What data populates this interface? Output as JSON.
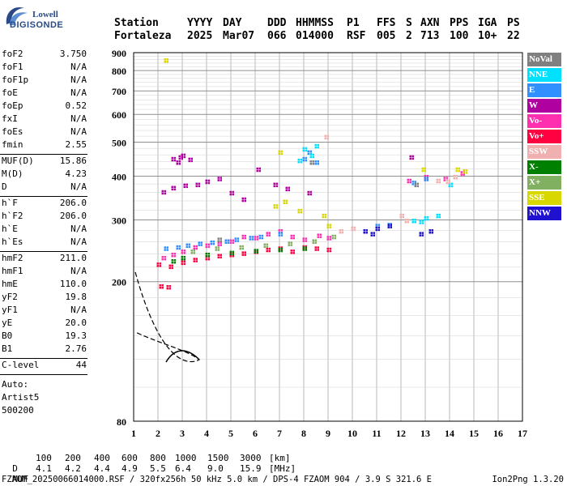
{
  "logo": {
    "line1": "Lowell",
    "line2": "DIGISONDE"
  },
  "header": {
    "columns": [
      {
        "label": "Station",
        "value": "Fortaleza"
      },
      {
        "label": "YYYY",
        "value": "2025"
      },
      {
        "label": "DAY",
        "value": "Mar07"
      },
      {
        "label": "DDD",
        "value": "066"
      },
      {
        "label": "HHMMSS",
        "value": "014000"
      },
      {
        "label": "P1",
        "value": "RSF"
      },
      {
        "label": "FFS",
        "value": "005"
      },
      {
        "label": "S",
        "value": "2"
      },
      {
        "label": "AXN",
        "value": "713"
      },
      {
        "label": "PPS",
        "value": "100"
      },
      {
        "label": "IGA",
        "value": "10+"
      },
      {
        "label": "PS",
        "value": "22"
      }
    ]
  },
  "params": {
    "group1": [
      {
        "key": "foF2",
        "value": "3.750"
      },
      {
        "key": "foF1",
        "value": "N/A"
      },
      {
        "key": "foF1p",
        "value": "N/A"
      },
      {
        "key": "foE",
        "value": "N/A"
      },
      {
        "key": "foEp",
        "value": "0.52"
      },
      {
        "key": "fxI",
        "value": "N/A"
      },
      {
        "key": "foEs",
        "value": "N/A"
      },
      {
        "key": "fmin",
        "value": "2.55"
      }
    ],
    "group2": [
      {
        "key": "MUF(D)",
        "value": "15.86"
      },
      {
        "key": "M(D)",
        "value": "4.23"
      },
      {
        "key": "D",
        "value": "N/A"
      }
    ],
    "group3": [
      {
        "key": "h`F",
        "value": "206.0"
      },
      {
        "key": "h`F2",
        "value": "206.0"
      },
      {
        "key": "h`E",
        "value": "N/A"
      },
      {
        "key": "h`Es",
        "value": "N/A"
      }
    ],
    "group4": [
      {
        "key": "hmF2",
        "value": "211.0"
      },
      {
        "key": "hmF1",
        "value": "N/A"
      },
      {
        "key": "hmE",
        "value": "110.0"
      },
      {
        "key": "yF2",
        "value": "19.8"
      },
      {
        "key": "yF1",
        "value": "N/A"
      },
      {
        "key": "yE",
        "value": "20.0"
      },
      {
        "key": "B0",
        "value": "19.3"
      },
      {
        "key": "B1",
        "value": "2.76"
      }
    ],
    "clevel": {
      "key": "C-level",
      "value": "44"
    },
    "auto": {
      "line1": "Auto:",
      "line2": "Artist5",
      "line3": "500200"
    }
  },
  "legend": [
    {
      "label": "NoVal",
      "color": "#808080"
    },
    {
      "label": "NNE",
      "color": "#00e0ff"
    },
    {
      "label": "E",
      "color": "#3090ff"
    },
    {
      "label": "W",
      "color": "#b000a0"
    },
    {
      "label": "Vo-",
      "color": "#ff30b0"
    },
    {
      "label": "Vo+",
      "color": "#ff0040"
    },
    {
      "label": "SSW",
      "color": "#f0b0b0"
    },
    {
      "label": "X-",
      "color": "#008000"
    },
    {
      "label": "X+",
      "color": "#80b060"
    },
    {
      "label": "SSE",
      "color": "#d8d800"
    },
    {
      "label": "NNW",
      "color": "#2010d0"
    }
  ],
  "chart_data": {
    "type": "scatter",
    "title": "",
    "xlabel": "",
    "ylabel": "",
    "xlim": [
      1,
      17
    ],
    "ylim": [
      80,
      900
    ],
    "y_scale": "log",
    "x_ticks": [
      "1",
      "2",
      "3",
      "4",
      "5",
      "6",
      "7",
      "8",
      "9",
      "10",
      "11",
      "12",
      "13",
      "14",
      "15",
      "16",
      "17"
    ],
    "y_ticks": [
      "80",
      "200",
      "300",
      "400",
      "500",
      "600",
      "700",
      "800",
      "900"
    ],
    "grid": true,
    "legend_position": "right",
    "series": [
      {
        "name": "W",
        "points": [
          [
            2.6,
            450
          ],
          [
            2.9,
            455
          ],
          [
            3.3,
            448
          ],
          [
            2.8,
            440
          ],
          [
            3.0,
            460
          ],
          [
            2.2,
            362
          ],
          [
            2.6,
            372
          ],
          [
            3.1,
            378
          ],
          [
            3.6,
            380
          ],
          [
            4.0,
            388
          ],
          [
            4.5,
            395
          ],
          [
            5.0,
            360
          ],
          [
            5.5,
            345
          ],
          [
            6.1,
            420
          ],
          [
            6.8,
            380
          ],
          [
            7.3,
            370
          ],
          [
            8.2,
            360
          ],
          [
            12.4,
            455
          ]
        ]
      },
      {
        "name": "Vo-",
        "points": [
          [
            2.2,
            235
          ],
          [
            2.6,
            240
          ],
          [
            3.0,
            245
          ],
          [
            3.5,
            252
          ],
          [
            4.0,
            255
          ],
          [
            4.5,
            258
          ],
          [
            5.0,
            262
          ],
          [
            5.5,
            270
          ],
          [
            6.0,
            268
          ],
          [
            6.5,
            275
          ],
          [
            7.0,
            280
          ],
          [
            7.5,
            270
          ],
          [
            8.0,
            265
          ],
          [
            8.6,
            272
          ],
          [
            9.0,
            268
          ],
          [
            12.3,
            390
          ],
          [
            13.0,
            400
          ],
          [
            13.8,
            395
          ],
          [
            14.5,
            410
          ]
        ]
      },
      {
        "name": "Vo+",
        "points": [
          [
            2.0,
            225
          ],
          [
            2.5,
            222
          ],
          [
            3.0,
            228
          ],
          [
            3.5,
            232
          ],
          [
            4.0,
            235
          ],
          [
            4.5,
            238
          ],
          [
            5.0,
            240
          ],
          [
            5.5,
            242
          ],
          [
            6.0,
            245
          ],
          [
            6.5,
            248
          ],
          [
            7.0,
            250
          ],
          [
            7.5,
            245
          ],
          [
            8.0,
            252
          ],
          [
            8.5,
            250
          ],
          [
            9.0,
            248
          ],
          [
            2.1,
            195
          ],
          [
            2.4,
            194
          ]
        ]
      },
      {
        "name": "E",
        "points": [
          [
            2.3,
            250
          ],
          [
            2.8,
            252
          ],
          [
            3.2,
            255
          ],
          [
            3.7,
            258
          ],
          [
            4.2,
            260
          ],
          [
            4.8,
            262
          ],
          [
            5.2,
            265
          ],
          [
            5.8,
            268
          ],
          [
            6.2,
            270
          ],
          [
            7.0,
            275
          ],
          [
            8.0,
            450
          ],
          [
            8.2,
            470
          ],
          [
            8.5,
            440
          ],
          [
            11.0,
            290
          ],
          [
            11.5,
            292
          ],
          [
            12.5,
            385
          ],
          [
            13.0,
            395
          ]
        ]
      },
      {
        "name": "NNE",
        "points": [
          [
            8.0,
            480
          ],
          [
            8.3,
            460
          ],
          [
            8.5,
            490
          ],
          [
            7.8,
            445
          ],
          [
            12.5,
            300
          ],
          [
            13.0,
            305
          ],
          [
            13.5,
            310
          ],
          [
            12.8,
            298
          ],
          [
            14.0,
            380
          ]
        ]
      },
      {
        "name": "NNW",
        "points": [
          [
            10.5,
            280
          ],
          [
            11.0,
            285
          ],
          [
            11.5,
            290
          ],
          [
            12.8,
            275
          ],
          [
            13.2,
            280
          ],
          [
            10.8,
            275
          ]
        ]
      },
      {
        "name": "SSW",
        "points": [
          [
            9.5,
            280
          ],
          [
            10.0,
            285
          ],
          [
            12.0,
            310
          ],
          [
            12.2,
            300
          ],
          [
            13.5,
            390
          ],
          [
            13.9,
            388
          ],
          [
            14.2,
            400
          ],
          [
            8.9,
            520
          ]
        ]
      },
      {
        "name": "X-",
        "points": [
          [
            3.0,
            235
          ],
          [
            4.0,
            240
          ],
          [
            5.0,
            243
          ],
          [
            6.0,
            246
          ],
          [
            7.0,
            248
          ],
          [
            8.0,
            250
          ],
          [
            2.6,
            230
          ]
        ]
      },
      {
        "name": "X+",
        "points": [
          [
            3.4,
            245
          ],
          [
            4.4,
            250
          ],
          [
            5.4,
            252
          ],
          [
            6.4,
            255
          ],
          [
            7.4,
            258
          ],
          [
            8.4,
            262
          ],
          [
            9.2,
            270
          ]
        ]
      },
      {
        "name": "SSE",
        "points": [
          [
            6.8,
            330
          ],
          [
            7.2,
            340
          ],
          [
            7.8,
            320
          ],
          [
            8.8,
            310
          ],
          [
            9.0,
            290
          ],
          [
            12.9,
            420
          ],
          [
            14.3,
            420
          ],
          [
            14.6,
            415
          ],
          [
            7.0,
            470
          ],
          [
            2.3,
            860
          ]
        ]
      },
      {
        "name": "NoVal",
        "points": [
          [
            4.5,
            265
          ],
          [
            8.3,
            440
          ],
          [
            12.6,
            380
          ]
        ]
      }
    ],
    "bottom_table": {
      "D_label": "D",
      "D_values": [
        "100",
        "200",
        "400",
        "600",
        "800",
        "1000",
        "1500",
        "3000"
      ],
      "D_unit": "[km]",
      "MUF_label": "MUF",
      "MUF_values": [
        "4.1",
        "4.2",
        "4.4",
        "4.9",
        "5.5",
        "6.4",
        "9.0",
        "15.9"
      ],
      "MUF_unit": "[MHz]"
    }
  },
  "footer": {
    "file": "FZAOM_20250066014000.RSF / 320fx256h 50 kHz 5.0 km / DPS-4 FZAOM 904 / 3.9 S 321.6 E",
    "version": "Ion2Png 1.3.20"
  }
}
